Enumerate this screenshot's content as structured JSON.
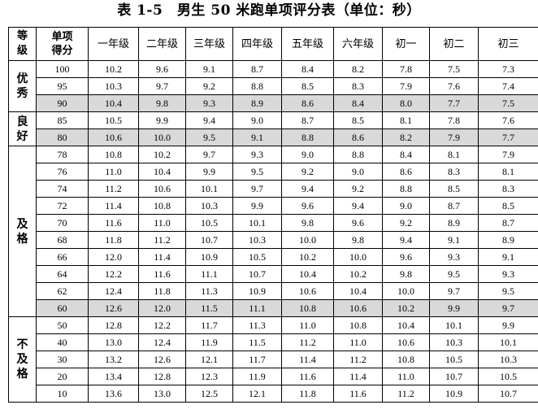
{
  "title": "表 1-5　男生 50 米跑单项评分表（单位：秒）",
  "header": {
    "level": "等级",
    "score": "单项得分",
    "grades": [
      "一年级",
      "二年级",
      "三年级",
      "四年级",
      "五年级",
      "六年级",
      "初一",
      "初二",
      "初三"
    ]
  },
  "groups": [
    {
      "level": "优秀",
      "rows": [
        {
          "score": "100",
          "values": [
            "10.2",
            "9.6",
            "9.1",
            "8.7",
            "8.4",
            "8.2",
            "7.8",
            "7.5",
            "7.3"
          ],
          "shaded": false
        },
        {
          "score": "95",
          "values": [
            "10.3",
            "9.7",
            "9.2",
            "8.8",
            "8.5",
            "8.3",
            "7.9",
            "7.6",
            "7.4"
          ],
          "shaded": false
        },
        {
          "score": "90",
          "values": [
            "10.4",
            "9.8",
            "9.3",
            "8.9",
            "8.6",
            "8.4",
            "8.0",
            "7.7",
            "7.5"
          ],
          "shaded": true
        }
      ]
    },
    {
      "level": "良好",
      "rows": [
        {
          "score": "85",
          "values": [
            "10.5",
            "9.9",
            "9.4",
            "9.0",
            "8.7",
            "8.5",
            "8.1",
            "7.8",
            "7.6"
          ],
          "shaded": false
        },
        {
          "score": "80",
          "values": [
            "10.6",
            "10.0",
            "9.5",
            "9.1",
            "8.8",
            "8.6",
            "8.2",
            "7.9",
            "7.7"
          ],
          "shaded": true
        }
      ]
    },
    {
      "level": "及格",
      "rows": [
        {
          "score": "78",
          "values": [
            "10.8",
            "10.2",
            "9.7",
            "9.3",
            "9.0",
            "8.8",
            "8.4",
            "8.1",
            "7.9"
          ],
          "shaded": false
        },
        {
          "score": "76",
          "values": [
            "11.0",
            "10.4",
            "9.9",
            "9.5",
            "9.2",
            "9.0",
            "8.6",
            "8.3",
            "8.1"
          ],
          "shaded": false
        },
        {
          "score": "74",
          "values": [
            "11.2",
            "10.6",
            "10.1",
            "9.7",
            "9.4",
            "9.2",
            "8.8",
            "8.5",
            "8.3"
          ],
          "shaded": false
        },
        {
          "score": "72",
          "values": [
            "11.4",
            "10.8",
            "10.3",
            "9.9",
            "9.6",
            "9.4",
            "9.0",
            "8.7",
            "8.5"
          ],
          "shaded": false
        },
        {
          "score": "70",
          "values": [
            "11.6",
            "11.0",
            "10.5",
            "10.1",
            "9.8",
            "9.6",
            "9.2",
            "8.9",
            "8.7"
          ],
          "shaded": false
        },
        {
          "score": "68",
          "values": [
            "11.8",
            "11.2",
            "10.7",
            "10.3",
            "10.0",
            "9.8",
            "9.4",
            "9.1",
            "8.9"
          ],
          "shaded": false
        },
        {
          "score": "66",
          "values": [
            "12.0",
            "11.4",
            "10.9",
            "10.5",
            "10.2",
            "10.0",
            "9.6",
            "9.3",
            "9.1"
          ],
          "shaded": false
        },
        {
          "score": "64",
          "values": [
            "12.2",
            "11.6",
            "11.1",
            "10.7",
            "10.4",
            "10.2",
            "9.8",
            "9.5",
            "9.3"
          ],
          "shaded": false
        },
        {
          "score": "62",
          "values": [
            "12.4",
            "11.8",
            "11.3",
            "10.9",
            "10.6",
            "10.4",
            "10.0",
            "9.7",
            "9.5"
          ],
          "shaded": false
        },
        {
          "score": "60",
          "values": [
            "12.6",
            "12.0",
            "11.5",
            "11.1",
            "10.8",
            "10.6",
            "10.2",
            "9.9",
            "9.7"
          ],
          "shaded": true
        }
      ]
    },
    {
      "level": "不及格",
      "rows": [
        {
          "score": "50",
          "values": [
            "12.8",
            "12.2",
            "11.7",
            "11.3",
            "11.0",
            "10.8",
            "10.4",
            "10.1",
            "9.9"
          ],
          "shaded": false
        },
        {
          "score": "40",
          "values": [
            "13.0",
            "12.4",
            "11.9",
            "11.5",
            "11.2",
            "11.0",
            "10.6",
            "10.3",
            "10.1"
          ],
          "shaded": false
        },
        {
          "score": "30",
          "values": [
            "13.2",
            "12.6",
            "12.1",
            "11.7",
            "11.4",
            "11.2",
            "10.8",
            "10.5",
            "10.3"
          ],
          "shaded": false
        },
        {
          "score": "20",
          "values": [
            "13.4",
            "12.8",
            "12.3",
            "11.9",
            "11.6",
            "11.4",
            "11.0",
            "10.7",
            "10.5"
          ],
          "shaded": false
        },
        {
          "score": "10",
          "values": [
            "13.6",
            "13.0",
            "12.5",
            "12.1",
            "11.8",
            "11.6",
            "11.2",
            "10.9",
            "10.7"
          ],
          "shaded": false
        }
      ]
    }
  ],
  "colors": {
    "shade": "#d9d9d9",
    "border": "#000000"
  }
}
